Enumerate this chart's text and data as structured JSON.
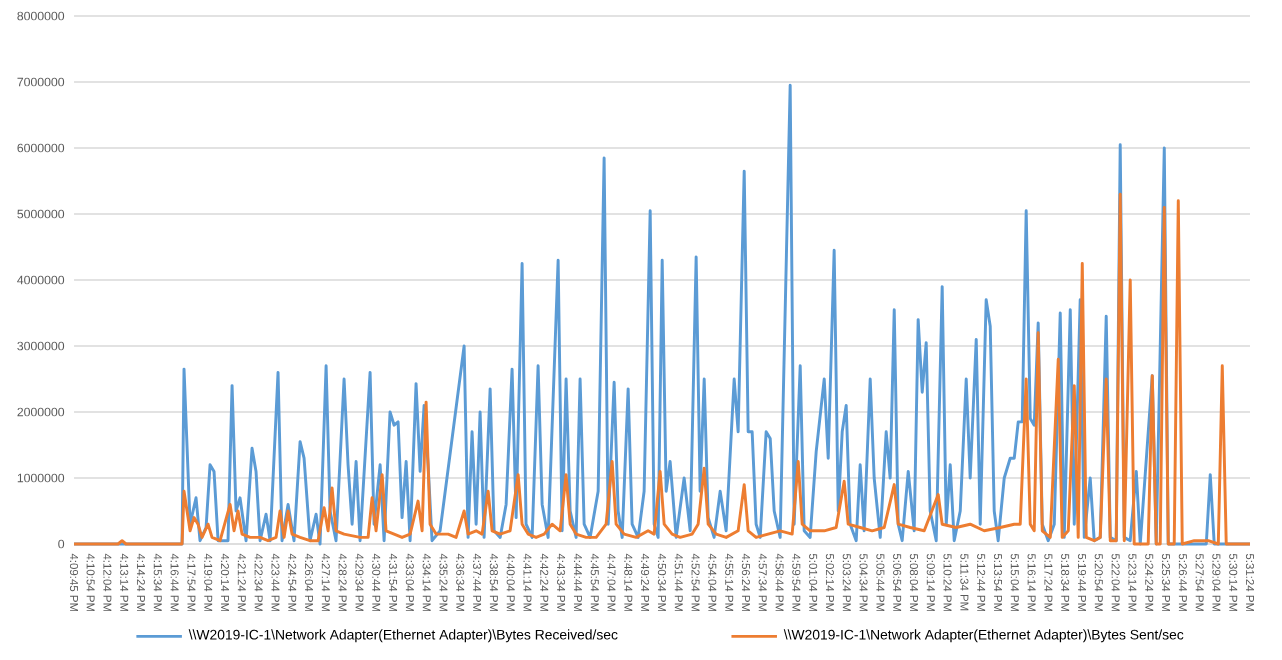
{
  "chart_data": {
    "type": "line",
    "xlim": [
      16.1625,
      17.5233
    ],
    "ylim": [
      0,
      8000000
    ],
    "yticks": [
      0,
      1000000,
      2000000,
      3000000,
      4000000,
      5000000,
      6000000,
      7000000,
      8000000
    ],
    "xticks": [
      {
        "value": 16.1625,
        "label": "4:09:45 PM"
      },
      {
        "value": 16.1817,
        "label": "4:10:54 PM"
      },
      {
        "value": 16.2011,
        "label": "4:12:04 PM"
      },
      {
        "value": 16.2206,
        "label": "4:13:14 PM"
      },
      {
        "value": 16.24,
        "label": "4:14:24 PM"
      },
      {
        "value": 16.2594,
        "label": "4:15:34 PM"
      },
      {
        "value": 16.2789,
        "label": "4:16:44 PM"
      },
      {
        "value": 16.2983,
        "label": "4:17:54 PM"
      },
      {
        "value": 16.3178,
        "label": "4:19:04 PM"
      },
      {
        "value": 16.3372,
        "label": "4:20:14 PM"
      },
      {
        "value": 16.3567,
        "label": "4:21:24 PM"
      },
      {
        "value": 16.3761,
        "label": "4:22:34 PM"
      },
      {
        "value": 16.3956,
        "label": "4:23:44 PM"
      },
      {
        "value": 16.415,
        "label": "4:24:54 PM"
      },
      {
        "value": 16.4344,
        "label": "4:26:04 PM"
      },
      {
        "value": 16.4539,
        "label": "4:27:14 PM"
      },
      {
        "value": 16.4733,
        "label": "4:28:24 PM"
      },
      {
        "value": 16.4928,
        "label": "4:29:34 PM"
      },
      {
        "value": 16.5122,
        "label": "4:30:44 PM"
      },
      {
        "value": 16.5317,
        "label": "4:31:54 PM"
      },
      {
        "value": 16.5511,
        "label": "4:33:04 PM"
      },
      {
        "value": 16.5706,
        "label": "4:34:14 PM"
      },
      {
        "value": 16.59,
        "label": "4:35:24 PM"
      },
      {
        "value": 16.6094,
        "label": "4:36:34 PM"
      },
      {
        "value": 16.6289,
        "label": "4:37:44 PM"
      },
      {
        "value": 16.6483,
        "label": "4:38:54 PM"
      },
      {
        "value": 16.6678,
        "label": "4:40:04 PM"
      },
      {
        "value": 16.6872,
        "label": "4:41:14 PM"
      },
      {
        "value": 16.7067,
        "label": "4:42:24 PM"
      },
      {
        "value": 16.7261,
        "label": "4:43:34 PM"
      },
      {
        "value": 16.7456,
        "label": "4:44:44 PM"
      },
      {
        "value": 16.765,
        "label": "4:45:54 PM"
      },
      {
        "value": 16.7844,
        "label": "4:47:04 PM"
      },
      {
        "value": 16.8039,
        "label": "4:48:14 PM"
      },
      {
        "value": 16.8233,
        "label": "4:49:24 PM"
      },
      {
        "value": 16.8428,
        "label": "4:50:34 PM"
      },
      {
        "value": 16.8622,
        "label": "4:51:44 PM"
      },
      {
        "value": 16.8817,
        "label": "4:52:54 PM"
      },
      {
        "value": 16.9011,
        "label": "4:54:04 PM"
      },
      {
        "value": 16.9206,
        "label": "4:55:14 PM"
      },
      {
        "value": 16.94,
        "label": "4:56:24 PM"
      },
      {
        "value": 16.9594,
        "label": "4:57:34 PM"
      },
      {
        "value": 16.9789,
        "label": "4:58:44 PM"
      },
      {
        "value": 16.9983,
        "label": "4:59:54 PM"
      },
      {
        "value": 17.0178,
        "label": "5:01:04 PM"
      },
      {
        "value": 17.0372,
        "label": "5:02:14 PM"
      },
      {
        "value": 17.0567,
        "label": "5:03:24 PM"
      },
      {
        "value": 17.0761,
        "label": "5:04:34 PM"
      },
      {
        "value": 17.0956,
        "label": "5:05:44 PM"
      },
      {
        "value": 17.115,
        "label": "5:06:54 PM"
      },
      {
        "value": 17.1344,
        "label": "5:08:04 PM"
      },
      {
        "value": 17.1539,
        "label": "5:09:14 PM"
      },
      {
        "value": 17.1733,
        "label": "5:10:24 PM"
      },
      {
        "value": 17.1928,
        "label": "5:11:34 PM"
      },
      {
        "value": 17.2122,
        "label": "5:12:44 PM"
      },
      {
        "value": 17.2317,
        "label": "5:13:54 PM"
      },
      {
        "value": 17.2511,
        "label": "5:15:04 PM"
      },
      {
        "value": 17.2706,
        "label": "5:16:14 PM"
      },
      {
        "value": 17.29,
        "label": "5:17:24 PM"
      },
      {
        "value": 17.3094,
        "label": "5:18:34 PM"
      },
      {
        "value": 17.3289,
        "label": "5:19:44 PM"
      },
      {
        "value": 17.3483,
        "label": "5:20:54 PM"
      },
      {
        "value": 17.3678,
        "label": "5:22:04 PM"
      },
      {
        "value": 17.3872,
        "label": "5:23:14 PM"
      },
      {
        "value": 17.4067,
        "label": "5:24:24 PM"
      },
      {
        "value": 17.4261,
        "label": "5:25:34 PM"
      },
      {
        "value": 17.4456,
        "label": "5:26:44 PM"
      },
      {
        "value": 17.465,
        "label": "5:27:54 PM"
      },
      {
        "value": 17.4844,
        "label": "5:29:04 PM"
      },
      {
        "value": 17.5039,
        "label": "5:30:14 PM"
      },
      {
        "value": 17.5233,
        "label": "5:31:24 PM"
      }
    ],
    "grid": "y",
    "legend": "bottom",
    "line_style": "solid",
    "series": [
      {
        "name": "\\\\W2019-IC-1\\Network Adapter(Ethernet Adapter)\\Bytes Received/sec",
        "color": "#5b9bd5",
        "x": [
          16.1625,
          16.2875,
          16.2898,
          16.2968,
          16.3037,
          16.3083,
          16.3153,
          16.3199,
          16.3245,
          16.3292,
          16.3407,
          16.3454,
          16.35,
          16.3546,
          16.3616,
          16.3685,
          16.3731,
          16.3778,
          16.3847,
          16.3894,
          16.3986,
          16.4032,
          16.4102,
          16.4171,
          16.4241,
          16.4287,
          16.4356,
          16.4426,
          16.4472,
          16.4542,
          16.4588,
          16.4657,
          16.475,
          16.4796,
          16.4843,
          16.4889,
          16.4935,
          16.5051,
          16.5097,
          16.5167,
          16.5213,
          16.5282,
          16.5329,
          16.5375,
          16.5421,
          16.5468,
          16.5514,
          16.5583,
          16.563,
          16.5676,
          16.5722,
          16.5768,
          16.5861,
          16.6139,
          16.6185,
          16.6231,
          16.6278,
          16.6324,
          16.637,
          16.644,
          16.6486,
          16.6556,
          16.6625,
          16.6694,
          16.6741,
          16.681,
          16.6856,
          16.6926,
          16.6995,
          16.7042,
          16.7111,
          16.7227,
          16.7273,
          16.7319,
          16.7366,
          16.7435,
          16.7481,
          16.7528,
          16.7597,
          16.769,
          16.7759,
          16.7806,
          16.7875,
          16.7921,
          16.7968,
          16.8037,
          16.8083,
          16.8153,
          16.8222,
          16.8292,
          16.8338,
          16.8384,
          16.8431,
          16.8477,
          16.8523,
          16.8593,
          16.8685,
          16.8755,
          16.8824,
          16.887,
          16.8917,
          16.8963,
          16.9032,
          16.9102,
          16.9171,
          16.9264,
          16.931,
          16.938,
          16.9426,
          16.9472,
          16.9518,
          16.9565,
          16.9634,
          16.9681,
          16.9727,
          16.9796,
          16.9912,
          16.9958,
          17.0028,
          17.0074,
          17.0143,
          17.0213,
          17.0306,
          17.0352,
          17.0421,
          17.0468,
          17.0514,
          17.056,
          17.0606,
          17.0676,
          17.0722,
          17.0768,
          17.0838,
          17.0884,
          17.0954,
          17.1023,
          17.1069,
          17.1116,
          17.1162,
          17.1208,
          17.1278,
          17.1347,
          17.1393,
          17.144,
          17.1486,
          17.1532,
          17.1602,
          17.1671,
          17.1718,
          17.1764,
          17.181,
          17.188,
          17.1949,
          17.1995,
          17.2065,
          17.2111,
          17.218,
          17.2227,
          17.2273,
          17.2319,
          17.2389,
          17.2458,
          17.2505,
          17.2551,
          17.2597,
          17.2643,
          17.269,
          17.2736,
          17.2782,
          17.2829,
          17.2898,
          17.2968,
          17.3037,
          17.3083,
          17.3153,
          17.3199,
          17.3268,
          17.3315,
          17.3384,
          17.343,
          17.35,
          17.3569,
          17.3616,
          17.3685,
          17.3731,
          17.3778,
          17.3847,
          17.3917,
          17.3963,
          17.4102,
          17.4148,
          17.4241,
          17.4287,
          17.4727,
          17.4773,
          17.4819,
          17.5233
        ],
        "values": [
          0,
          0,
          2650000,
          300000,
          700000,
          50000,
          250000,
          1200000,
          1100000,
          50000,
          50000,
          2400000,
          500000,
          700000,
          50000,
          1450000,
          1100000,
          50000,
          450000,
          50000,
          2600000,
          50000,
          600000,
          50000,
          1550000,
          1300000,
          50000,
          450000,
          0,
          2700000,
          500000,
          50000,
          2500000,
          1200000,
          300000,
          1250000,
          50000,
          2600000,
          300000,
          1200000,
          50000,
          2000000,
          1800000,
          1850000,
          400000,
          1250000,
          50000,
          2430000,
          1100000,
          2100000,
          1200000,
          50000,
          200000,
          3000000,
          100000,
          1700000,
          300000,
          2000000,
          100000,
          2350000,
          200000,
          100000,
          600000,
          2650000,
          400000,
          4250000,
          300000,
          100000,
          2700000,
          600000,
          100000,
          4300000,
          200000,
          2500000,
          500000,
          100000,
          2500000,
          300000,
          100000,
          800000,
          5850000,
          300000,
          2450000,
          500000,
          100000,
          2350000,
          300000,
          100000,
          800000,
          5050000,
          300000,
          100000,
          4300000,
          800000,
          1250000,
          100000,
          1000000,
          200000,
          4350000,
          800000,
          2500000,
          400000,
          100000,
          800000,
          200000,
          2500000,
          1700000,
          5650000,
          1700000,
          1700000,
          300000,
          100000,
          1700000,
          1600000,
          500000,
          100000,
          6950000,
          300000,
          2700000,
          200000,
          100000,
          1400000,
          2500000,
          1300000,
          4450000,
          500000,
          1700000,
          2100000,
          300000,
          50000,
          1200000,
          200000,
          2500000,
          1000000,
          100000,
          1700000,
          1000000,
          3550000,
          300000,
          50000,
          1100000,
          200000,
          3400000,
          2300000,
          3050000,
          500000,
          50000,
          3900000,
          300000,
          1200000,
          50000,
          500000,
          2500000,
          1000000,
          3100000,
          300000,
          3700000,
          3300000,
          500000,
          50000,
          1000000,
          1300000,
          1300000,
          1850000,
          1850000,
          5050000,
          1900000,
          1800000,
          3350000,
          300000,
          50000,
          300000,
          3500000,
          100000,
          3550000,
          300000,
          3700000,
          100000,
          1000000,
          50000,
          100000,
          3450000,
          100000,
          50000,
          6050000,
          100000,
          50000,
          1100000,
          0,
          2550000,
          0,
          6000000,
          0,
          0,
          1050000,
          0,
          0
        ]
      },
      {
        "name": "\\\\W2019-IC-1\\Network Adapter(Ethernet Adapter)\\Bytes Sent/sec",
        "color": "#ed7d31",
        "x": [
          16.1625,
          16.2134,
          16.2181,
          16.2227,
          16.2875,
          16.2898,
          16.2968,
          16.3014,
          16.306,
          16.3106,
          16.3176,
          16.3222,
          16.3315,
          16.3431,
          16.3477,
          16.3523,
          16.3569,
          16.3662,
          16.3778,
          16.387,
          16.3963,
          16.4009,
          16.4056,
          16.4102,
          16.4148,
          16.4241,
          16.4356,
          16.4449,
          16.4519,
          16.4565,
          16.4611,
          16.4657,
          16.475,
          16.4935,
          16.5028,
          16.5074,
          16.512,
          16.519,
          16.5236,
          16.5329,
          16.5421,
          16.5514,
          16.5606,
          16.5653,
          16.5699,
          16.5745,
          16.5815,
          16.5954,
          16.6046,
          16.6139,
          16.6185,
          16.6278,
          16.6347,
          16.6417,
          16.6463,
          16.6556,
          16.6671,
          16.6764,
          16.681,
          16.688,
          16.6972,
          16.7065,
          16.7157,
          16.725,
          16.7319,
          16.7366,
          16.7435,
          16.7551,
          16.7667,
          16.7782,
          16.7852,
          16.7898,
          16.7991,
          16.813,
          16.8268,
          16.8338,
          16.8407,
          16.8454,
          16.8546,
          16.8639,
          16.8778,
          16.8847,
          16.8917,
          16.8963,
          16.9056,
          16.9171,
          16.931,
          16.938,
          16.9426,
          16.9518,
          16.9657,
          16.9796,
          16.9935,
          17.0005,
          17.0051,
          17.0143,
          17.0306,
          17.0444,
          17.0537,
          17.0583,
          17.0722,
          17.0861,
          17.1,
          17.1116,
          17.1162,
          17.1301,
          17.1463,
          17.1625,
          17.1671,
          17.1833,
          17.1995,
          17.2157,
          17.2343,
          17.2505,
          17.2574,
          17.2643,
          17.269,
          17.2736,
          17.2782,
          17.2829,
          17.2921,
          17.3014,
          17.306,
          17.313,
          17.3199,
          17.3245,
          17.3292,
          17.3338,
          17.343,
          17.35,
          17.3569,
          17.3616,
          17.3685,
          17.3731,
          17.3778,
          17.3847,
          17.3893,
          17.4055,
          17.4102,
          17.4148,
          17.4194,
          17.4241,
          17.4287,
          17.4356,
          17.4403,
          17.4449,
          17.4588,
          17.475,
          17.4866,
          17.4912,
          17.4958,
          17.5233
        ],
        "values": [
          0,
          0,
          50000,
          0,
          0,
          800000,
          200000,
          400000,
          300000,
          100000,
          300000,
          100000,
          50000,
          600000,
          200000,
          500000,
          150000,
          100000,
          100000,
          50000,
          100000,
          500000,
          100000,
          500000,
          150000,
          100000,
          50000,
          50000,
          550000,
          200000,
          850000,
          200000,
          150000,
          100000,
          100000,
          700000,
          200000,
          1050000,
          200000,
          150000,
          100000,
          150000,
          650000,
          200000,
          2150000,
          300000,
          150000,
          150000,
          100000,
          500000,
          150000,
          200000,
          150000,
          800000,
          200000,
          150000,
          200000,
          1050000,
          300000,
          150000,
          100000,
          150000,
          300000,
          200000,
          1050000,
          300000,
          150000,
          100000,
          100000,
          300000,
          1250000,
          300000,
          150000,
          100000,
          200000,
          150000,
          1100000,
          300000,
          150000,
          100000,
          150000,
          300000,
          1150000,
          300000,
          150000,
          100000,
          200000,
          900000,
          200000,
          100000,
          150000,
          200000,
          150000,
          1250000,
          300000,
          200000,
          200000,
          250000,
          950000,
          300000,
          250000,
          200000,
          250000,
          900000,
          300000,
          250000,
          200000,
          750000,
          300000,
          250000,
          300000,
          200000,
          250000,
          300000,
          300000,
          2500000,
          300000,
          200000,
          3200000,
          200000,
          100000,
          2800000,
          100000,
          200000,
          2400000,
          100000,
          4250000,
          100000,
          50000,
          100000,
          2500000,
          50000,
          50000,
          5300000,
          50000,
          4000000,
          0,
          0,
          2550000,
          0,
          0,
          5100000,
          0,
          0,
          5200000,
          0,
          50000,
          50000,
          0,
          2700000,
          0,
          0
        ]
      }
    ]
  }
}
